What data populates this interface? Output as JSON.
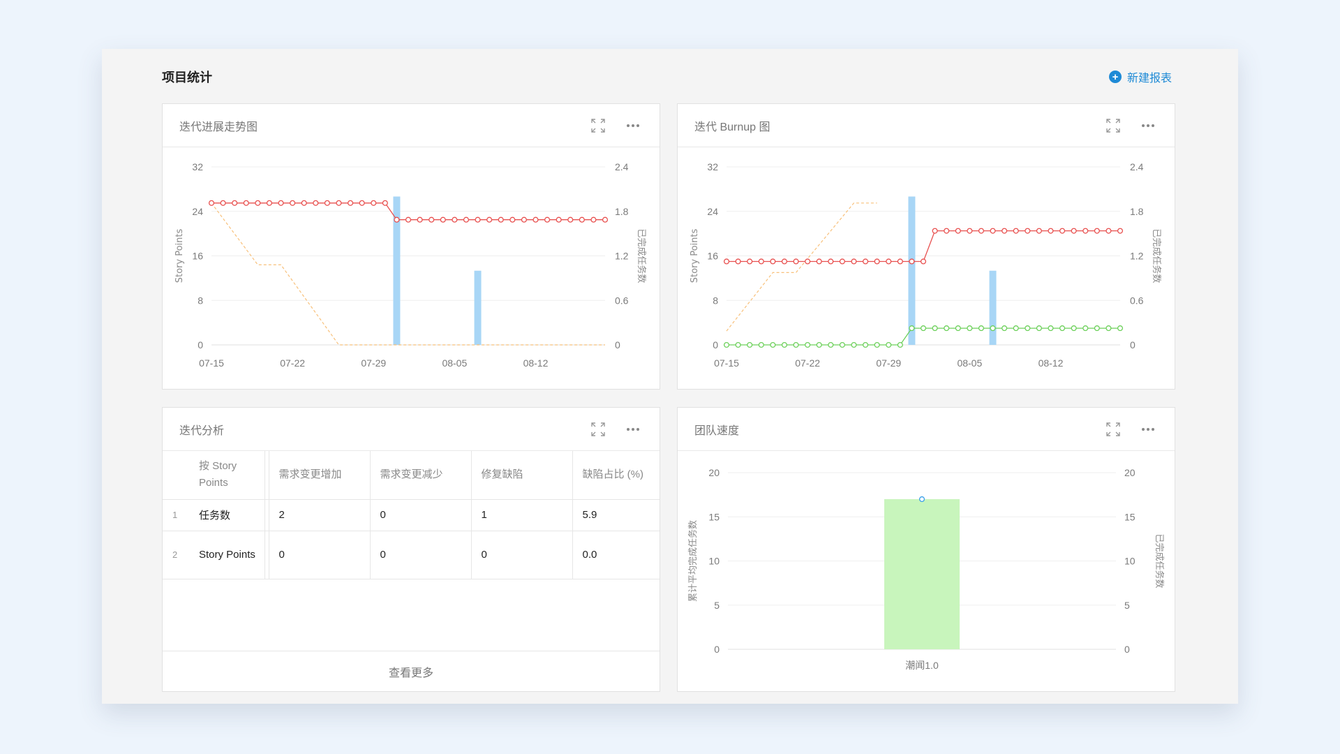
{
  "page": {
    "title": "项目统计",
    "new_report": "新建报表"
  },
  "cards": {
    "trend": {
      "title": "迭代进展走势图"
    },
    "burnup": {
      "title": "迭代 Burnup 图"
    },
    "analysis": {
      "title": "迭代分析"
    },
    "velocity": {
      "title": "团队速度"
    }
  },
  "icons": {
    "expand": "expand-icon",
    "more": "more-icon",
    "plus": "plus-circle-icon"
  },
  "colors": {
    "accent": "#1e8ad6",
    "red_line": "#e8504f",
    "green_line": "#6cd05a",
    "orange_line": "#f8c07a",
    "blue_bar": "#a8d6f6",
    "green_bar": "#c8f5bc"
  },
  "analysis": {
    "columns": [
      "按 Story Points",
      "需求变更增加",
      "需求变更减少",
      "修复缺陷",
      "缺陷占比 (%)"
    ],
    "rows": [
      {
        "index": "1",
        "name": "任务数",
        "values": [
          "2",
          "0",
          "1",
          "5.9"
        ]
      },
      {
        "index": "2",
        "name": "Story Points",
        "values": [
          "0",
          "0",
          "0",
          "0.0"
        ]
      }
    ],
    "more_label": "查看更多"
  },
  "chart_data": [
    {
      "type": "line",
      "title": "迭代进展走势图",
      "x_ticks": [
        "07-15",
        "07-22",
        "07-29",
        "08-05",
        "08-12"
      ],
      "ylabel": "Story Points",
      "y2label": "已完成任务数",
      "y_ticks": [
        0,
        8,
        16,
        24,
        32
      ],
      "y2_ticks": [
        "0",
        "0.6",
        "1.2",
        "1.8",
        "2.4"
      ],
      "ylim": [
        0,
        32
      ],
      "y2lim": [
        0,
        2.4
      ],
      "x_day_range": [
        "07-15",
        "08-18"
      ],
      "series": [
        {
          "type": "line",
          "style": "solid-markers",
          "days": [
            "07-15",
            "07-16",
            "07-17",
            "07-18",
            "07-19",
            "07-20",
            "07-21",
            "07-22",
            "07-23",
            "07-24",
            "07-25",
            "07-26",
            "07-27",
            "07-28",
            "07-29",
            "07-30",
            "07-31",
            "08-01",
            "08-02",
            "08-03",
            "08-04",
            "08-05",
            "08-06",
            "08-07",
            "08-08",
            "08-09",
            "08-10",
            "08-11",
            "08-12",
            "08-13",
            "08-14",
            "08-15",
            "08-16",
            "08-17",
            "08-18"
          ],
          "values": [
            25.5,
            25.5,
            25.5,
            25.5,
            25.5,
            25.5,
            25.5,
            25.5,
            25.5,
            25.5,
            25.5,
            25.5,
            25.5,
            25.5,
            25.5,
            25.5,
            22.5,
            22.5,
            22.5,
            22.5,
            22.5,
            22.5,
            22.5,
            22.5,
            22.5,
            22.5,
            22.5,
            22.5,
            22.5,
            22.5,
            22.5,
            22.5,
            22.5,
            22.5,
            22.5
          ]
        },
        {
          "type": "line",
          "style": "dashed",
          "days": [
            "07-15",
            "07-19",
            "07-21",
            "07-26",
            "08-18"
          ],
          "values": [
            25.5,
            14.4,
            14.4,
            0,
            0
          ]
        },
        {
          "type": "bar",
          "axis": "y2",
          "days": [
            "07-31",
            "08-07"
          ],
          "values": [
            2,
            1
          ]
        }
      ]
    },
    {
      "type": "line",
      "title": "迭代 Burnup 图",
      "x_ticks": [
        "07-15",
        "07-22",
        "07-29",
        "08-05",
        "08-12"
      ],
      "ylabel": "Story Points",
      "y2label": "已完成任务数",
      "y_ticks": [
        0,
        8,
        16,
        24,
        32
      ],
      "y2_ticks": [
        "0",
        "0.6",
        "1.2",
        "1.8",
        "2.4"
      ],
      "ylim": [
        0,
        32
      ],
      "y2lim": [
        0,
        2.4
      ],
      "x_day_range": [
        "07-15",
        "08-18"
      ],
      "series": [
        {
          "type": "line",
          "style": "solid-markers",
          "color": "red",
          "days": [
            "07-15",
            "07-16",
            "07-17",
            "07-18",
            "07-19",
            "07-20",
            "07-21",
            "07-22",
            "07-23",
            "07-24",
            "07-25",
            "07-26",
            "07-27",
            "07-28",
            "07-29",
            "07-30",
            "07-31",
            "08-01",
            "08-02",
            "08-03",
            "08-04",
            "08-05",
            "08-06",
            "08-07",
            "08-08",
            "08-09",
            "08-10",
            "08-11",
            "08-12",
            "08-13",
            "08-14",
            "08-15",
            "08-16",
            "08-17",
            "08-18"
          ],
          "values": [
            15,
            15,
            15,
            15,
            15,
            15,
            15,
            15,
            15,
            15,
            15,
            15,
            15,
            15,
            15,
            15,
            15,
            15,
            20.5,
            20.5,
            20.5,
            20.5,
            20.5,
            20.5,
            20.5,
            20.5,
            20.5,
            20.5,
            20.5,
            20.5,
            20.5,
            20.5,
            20.5,
            20.5,
            20.5
          ]
        },
        {
          "type": "line",
          "style": "solid-markers",
          "color": "green",
          "days": [
            "07-15",
            "07-16",
            "07-17",
            "07-18",
            "07-19",
            "07-20",
            "07-21",
            "07-22",
            "07-23",
            "07-24",
            "07-25",
            "07-26",
            "07-27",
            "07-28",
            "07-29",
            "07-30",
            "07-31",
            "08-01",
            "08-02",
            "08-03",
            "08-04",
            "08-05",
            "08-06",
            "08-07",
            "08-08",
            "08-09",
            "08-10",
            "08-11",
            "08-12",
            "08-13",
            "08-14",
            "08-15",
            "08-16",
            "08-17",
            "08-18"
          ],
          "values": [
            0,
            0,
            0,
            0,
            0,
            0,
            0,
            0,
            0,
            0,
            0,
            0,
            0,
            0,
            0,
            0,
            3,
            3,
            3,
            3,
            3,
            3,
            3,
            3,
            3,
            3,
            3,
            3,
            3,
            3,
            3,
            3,
            3,
            3,
            3
          ]
        },
        {
          "type": "line",
          "style": "dashed",
          "days": [
            "07-15",
            "07-19",
            "07-21",
            "07-26",
            "07-28"
          ],
          "values": [
            2.5,
            13,
            13,
            25.5,
            25.5
          ]
        },
        {
          "type": "bar",
          "axis": "y2",
          "days": [
            "07-31",
            "08-07"
          ],
          "values": [
            2,
            1
          ]
        }
      ]
    },
    {
      "type": "bar",
      "title": "团队速度",
      "categories": [
        "潮闻1.0"
      ],
      "ylabel": "累计平均完成任务数",
      "y2label": "已完成任务数",
      "y_ticks": [
        0,
        5,
        10,
        15,
        20
      ],
      "y2_ticks": [
        0,
        5,
        10,
        15,
        20
      ],
      "ylim": [
        0,
        20
      ],
      "y2lim": [
        0,
        20
      ],
      "series": [
        {
          "type": "bar",
          "values": [
            17
          ]
        },
        {
          "type": "line",
          "values": [
            17
          ]
        }
      ]
    }
  ]
}
